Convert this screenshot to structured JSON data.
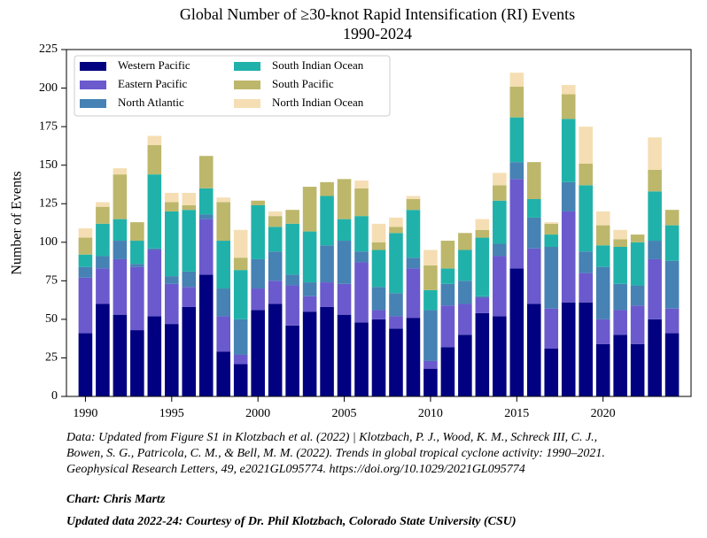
{
  "chart_data": {
    "type": "stacked-bar",
    "title": "Global Number of ≥30-knot Rapid Intensification (RI) Events",
    "subtitle": "1990-2024",
    "ylabel": "Number of Events",
    "x": [
      1990,
      1991,
      1992,
      1993,
      1994,
      1995,
      1996,
      1997,
      1998,
      1999,
      2000,
      2001,
      2002,
      2003,
      2004,
      2005,
      2006,
      2007,
      2008,
      2009,
      2010,
      2011,
      2012,
      2013,
      2014,
      2015,
      2016,
      2017,
      2018,
      2019,
      2020,
      2021,
      2022,
      2023,
      2024
    ],
    "series": [
      {
        "name": "Western Pacific",
        "color": "#000080",
        "values": [
          41,
          60,
          53,
          43,
          52,
          47,
          58,
          79,
          29,
          21,
          56,
          60,
          46,
          55,
          58,
          53,
          48,
          50,
          44,
          51,
          18,
          32,
          40,
          54,
          52,
          83,
          60,
          31,
          61,
          61,
          34,
          40,
          34,
          50,
          41
        ]
      },
      {
        "name": "Eastern Pacific",
        "color": "#6a5acd",
        "values": [
          36,
          23,
          36,
          41,
          43,
          26,
          13,
          36,
          23,
          6,
          14,
          15,
          26,
          10,
          16,
          20,
          39,
          6,
          8,
          32,
          5,
          27,
          20,
          10,
          39,
          58,
          36,
          26,
          59,
          19,
          16,
          16,
          25,
          39,
          16
        ]
      },
      {
        "name": "North Atlantic",
        "color": "#4682b4",
        "values": [
          7,
          8,
          12,
          2,
          1,
          5,
          10,
          3,
          18,
          23,
          19,
          19,
          7,
          9,
          24,
          28,
          7,
          15,
          15,
          7,
          33,
          14,
          15,
          1,
          8,
          11,
          20,
          40,
          19,
          14,
          34,
          17,
          13,
          12,
          31
        ]
      },
      {
        "name": "South Indian Ocean",
        "color": "#20b2aa",
        "values": [
          8,
          21,
          14,
          15,
          48,
          42,
          40,
          17,
          31,
          32,
          35,
          16,
          33,
          33,
          32,
          14,
          23,
          24,
          39,
          31,
          13,
          10,
          20,
          38,
          28,
          29,
          12,
          8,
          41,
          43,
          14,
          24,
          28,
          32,
          23
        ]
      },
      {
        "name": "South Pacific",
        "color": "#bdb76b",
        "values": [
          11,
          11,
          29,
          12,
          19,
          6,
          3,
          21,
          25,
          8,
          3,
          7,
          9,
          29,
          9,
          26,
          18,
          5,
          4,
          7,
          16,
          18,
          11,
          5,
          10,
          20,
          24,
          7,
          16,
          14,
          13,
          5,
          5,
          14,
          10
        ]
      },
      {
        "name": "North Indian Ocean",
        "color": "#f5deb3",
        "values": [
          6,
          3,
          4,
          0,
          6,
          6,
          8,
          0,
          3,
          18,
          0,
          3,
          0,
          0,
          0,
          0,
          5,
          12,
          6,
          2,
          10,
          0,
          0,
          7,
          8,
          9,
          0,
          1,
          6,
          24,
          9,
          6,
          0,
          21,
          0
        ]
      }
    ],
    "xlim": [
      1988.9,
      2025.1
    ],
    "xticks": [
      1990,
      1995,
      2000,
      2005,
      2010,
      2015,
      2020
    ],
    "ylim": [
      0,
      225
    ],
    "yticks": [
      0,
      25,
      50,
      75,
      100,
      125,
      150,
      175,
      200,
      225
    ],
    "legend": "upper left",
    "note": [
      "Data: Updated from Figure S1 in Klotzbach et al. (2022) | Klotzbach, P. J., Wood, K. M., Schreck III, C. J.,",
      "Bowen, S. G., Patricola, C. M., & Bell, M. M. (2022). Trends in global tropical cyclone activity: 1990–2021.",
      "Geophysical Research Letters, 49, e2021GL095774. https://doi.org/10.1029/2021GL095774"
    ],
    "credit": "Chart: Chris Martz",
    "credit2": "Updated data 2022-24: Courtesy of Dr. Phil Klotzbach, Colorado State University (CSU)"
  }
}
